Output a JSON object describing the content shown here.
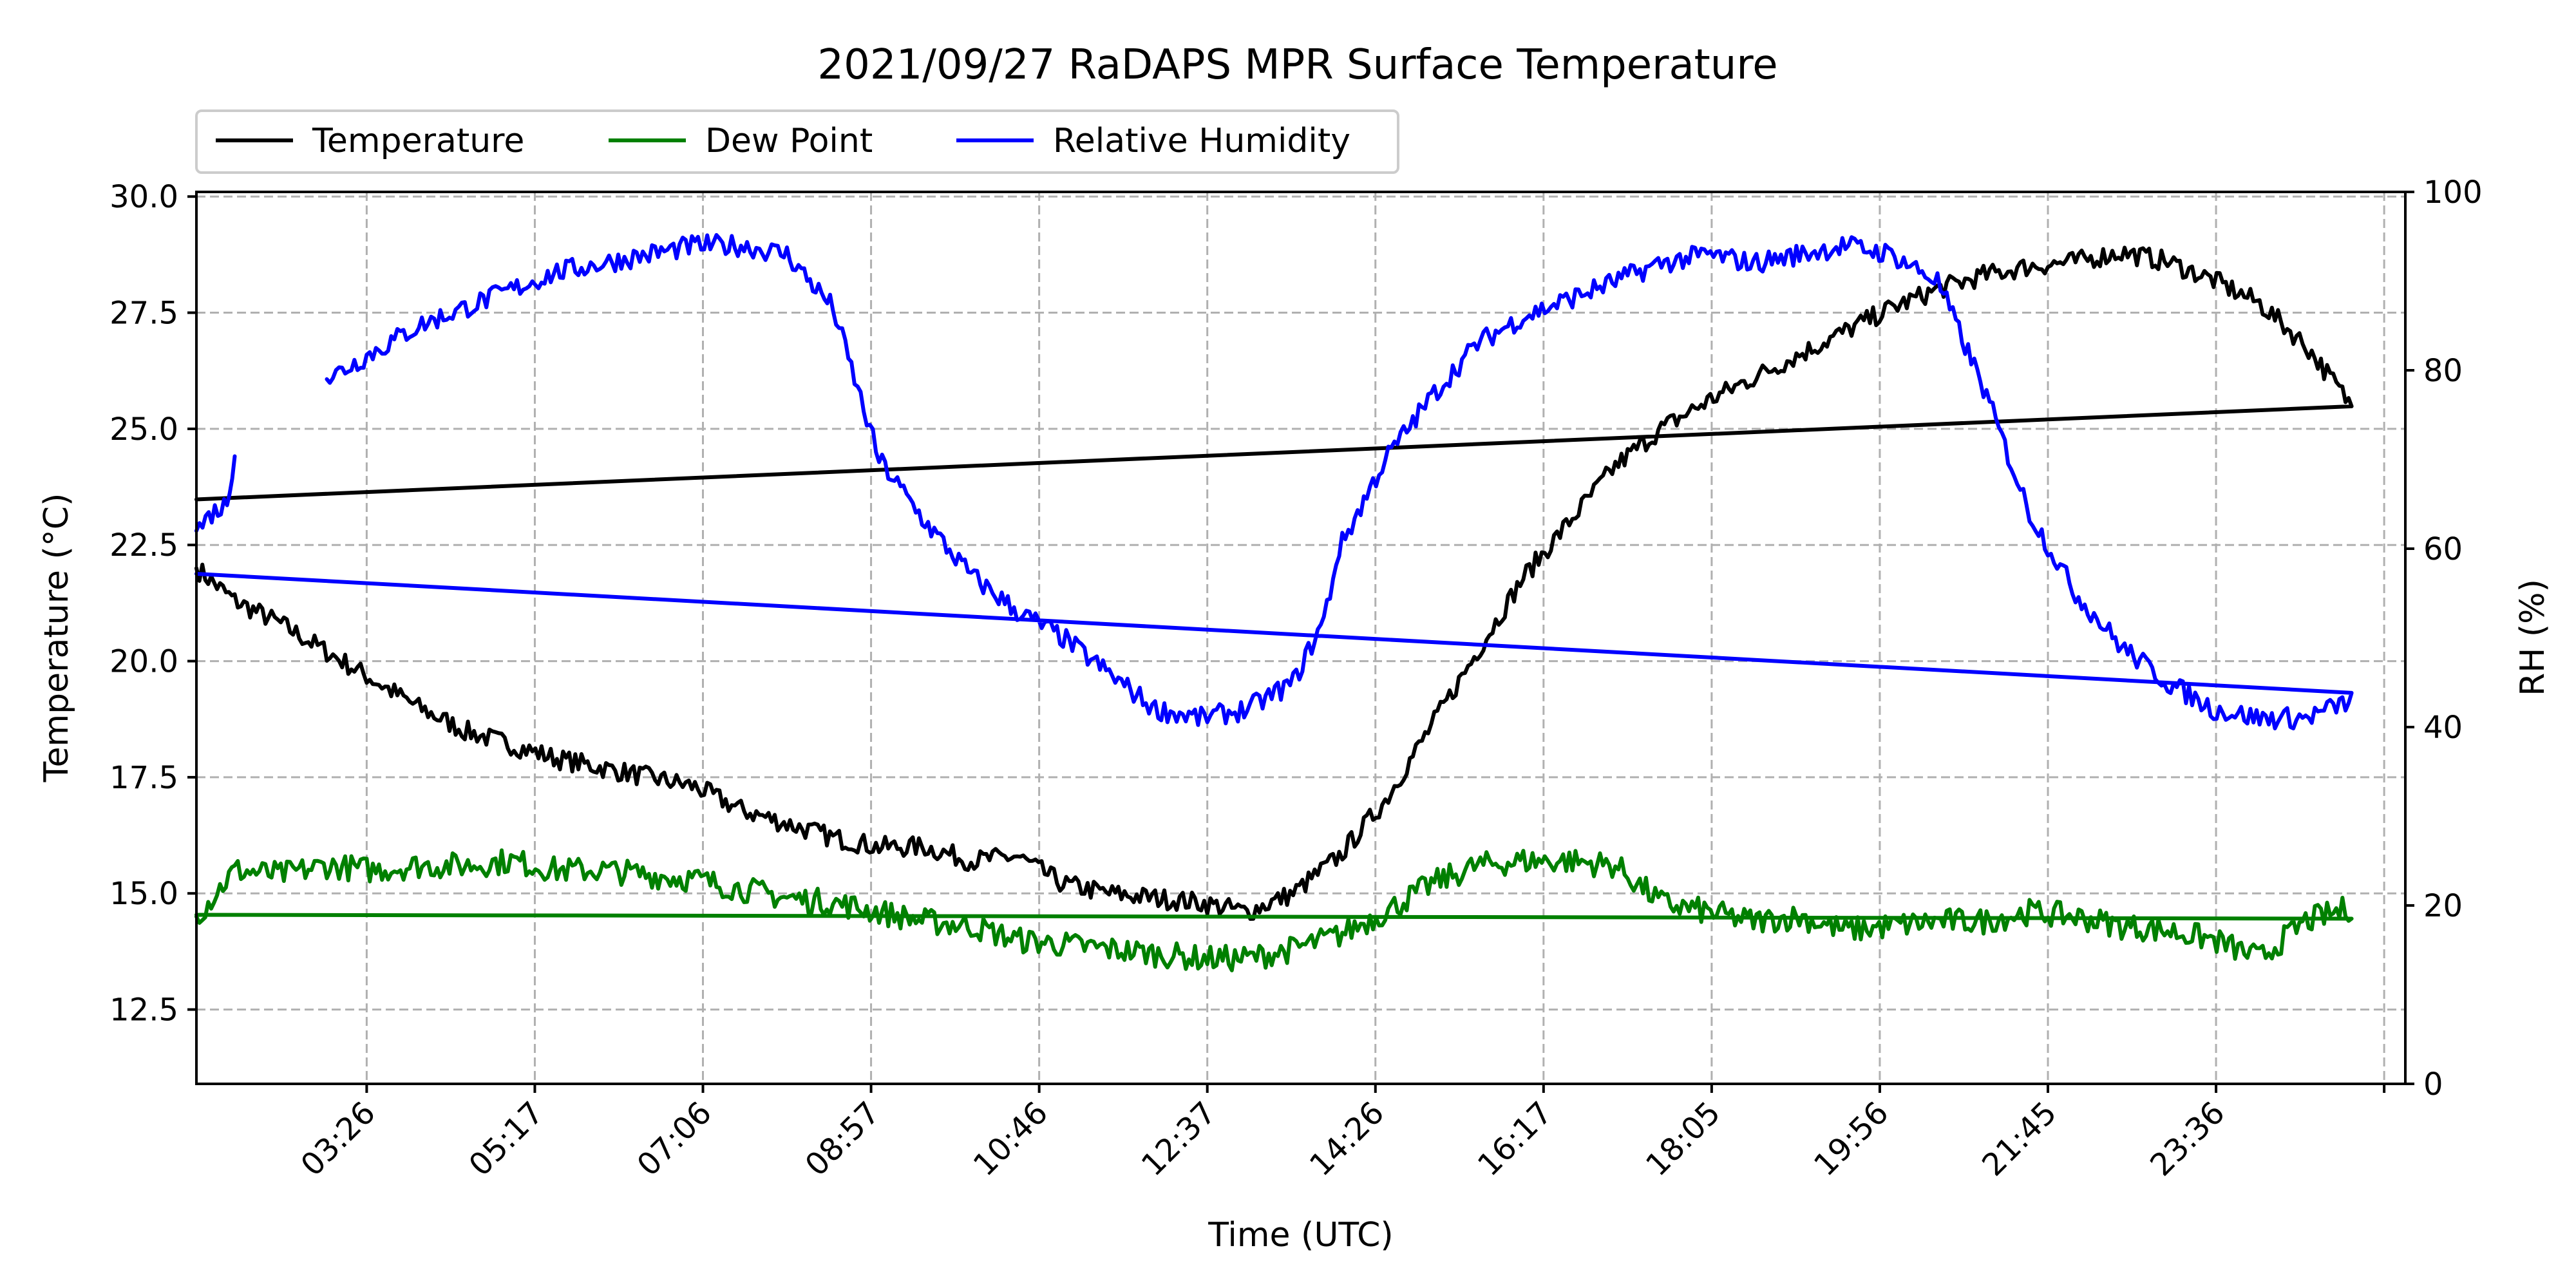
{
  "chart_data": {
    "type": "line",
    "title": "2021/09/27 RaDAPS MPR Surface Temperature",
    "xlabel": "Time (UTC)",
    "ylabel": "Temperature ($^\\circ$C)",
    "ylabel_display": "Temperature (°C)",
    "y2label": "RH (%)",
    "ylim": [
      10.9,
      30.1
    ],
    "y2lim": [
      0,
      100
    ],
    "y_ticks": [
      12.5,
      15.0,
      17.5,
      20.0,
      22.5,
      25.0,
      27.5,
      30.0
    ],
    "y_tick_labels": [
      "12.5",
      "15.0",
      "17.5",
      "20.0",
      "22.5",
      "25.0",
      "27.5",
      "30.0"
    ],
    "y2_ticks": [
      0,
      20,
      40,
      60,
      80,
      100
    ],
    "y2_tick_labels": [
      "0",
      "20",
      "40",
      "60",
      "80",
      "100"
    ],
    "xlim": [
      "01:35",
      "01:35 +1d"
    ],
    "x_tick_labels": [
      "03:26",
      "05:17",
      "07:06",
      "08:57",
      "10:46",
      "12:37",
      "14:26",
      "16:17",
      "18:05",
      "19:56",
      "21:45",
      "23:36",
      ""
    ],
    "grid": true,
    "legend_position": "top-left",
    "series": [
      {
        "name": "Temperature",
        "axis": "left",
        "color": "#000000",
        "x": [
          "01:35",
          "02:00",
          "02:30",
          "03:00",
          "03:30",
          "04:00",
          "04:30",
          "05:00",
          "05:30",
          "06:00",
          "06:30",
          "07:00",
          "07:30",
          "08:00",
          "08:30",
          "09:00",
          "09:30",
          "10:00",
          "10:30",
          "11:00",
          "11:30",
          "12:00",
          "12:30",
          "13:00",
          "13:30",
          "14:00",
          "14:30",
          "15:00",
          "15:30",
          "16:00",
          "16:30",
          "17:00",
          "17:30",
          "18:00",
          "18:30",
          "19:00",
          "19:30",
          "20:00",
          "20:30",
          "21:00",
          "21:30",
          "22:00",
          "22:30",
          "23:00",
          "23:30",
          "00:00",
          "00:30",
          "01:00",
          "01:35"
        ],
        "values": [
          22.0,
          21.3,
          20.8,
          20.2,
          19.6,
          19.0,
          18.5,
          18.2,
          17.9,
          17.7,
          17.5,
          17.3,
          16.8,
          16.5,
          16.2,
          16.0,
          16.0,
          15.7,
          15.8,
          15.2,
          15.0,
          14.9,
          14.8,
          14.6,
          15.0,
          15.8,
          17.0,
          18.6,
          20.2,
          21.8,
          23.0,
          24.2,
          25.0,
          25.6,
          26.1,
          26.6,
          27.1,
          27.6,
          28.0,
          28.3,
          28.5,
          28.6,
          28.8,
          28.6,
          28.2,
          27.7,
          26.8,
          25.5,
          23.7
        ]
      },
      {
        "name": "Dew Point",
        "axis": "left",
        "color": "#008000",
        "x": [
          "01:35",
          "02:00",
          "02:30",
          "03:00",
          "03:30",
          "04:00",
          "04:30",
          "05:00",
          "05:30",
          "06:00",
          "06:30",
          "07:00",
          "07:30",
          "08:00",
          "08:30",
          "09:00",
          "09:30",
          "10:00",
          "10:30",
          "11:00",
          "11:30",
          "12:00",
          "12:30",
          "13:00",
          "13:30",
          "14:00",
          "14:30",
          "15:00",
          "15:30",
          "16:00",
          "16:30",
          "17:00",
          "17:30",
          "18:00",
          "18:30",
          "19:00",
          "19:30",
          "20:00",
          "20:30",
          "21:00",
          "21:30",
          "22:00",
          "22:30",
          "23:00",
          "23:30",
          "00:00",
          "00:30",
          "01:00",
          "01:35"
        ],
        "values": [
          14.5,
          15.5,
          15.4,
          15.6,
          15.5,
          15.6,
          15.6,
          15.7,
          15.5,
          15.5,
          15.4,
          15.3,
          15.1,
          14.9,
          14.8,
          14.6,
          14.4,
          14.3,
          14.0,
          13.9,
          13.8,
          13.7,
          13.6,
          13.6,
          13.8,
          14.1,
          14.6,
          15.2,
          15.6,
          15.7,
          15.7,
          15.6,
          14.8,
          14.6,
          14.4,
          14.5,
          14.2,
          14.3,
          14.4,
          14.4,
          14.6,
          14.5,
          14.3,
          14.2,
          14.0,
          13.6,
          14.4,
          14.7,
          14.6
        ]
      },
      {
        "name": "Relative Humidity",
        "axis": "right",
        "color": "#0000ff",
        "x": [
          "01:35",
          "01:45",
          "01:55",
          "02:00",
          "02:40",
          "03:00",
          "03:30",
          "04:00",
          "04:30",
          "05:00",
          "05:30",
          "06:00",
          "06:30",
          "07:00",
          "07:30",
          "08:00",
          "08:15",
          "08:30",
          "09:00",
          "09:30",
          "10:00",
          "10:30",
          "11:00",
          "11:30",
          "12:00",
          "12:30",
          "13:00",
          "13:30",
          "13:50",
          "14:00",
          "14:30",
          "15:00",
          "15:30",
          "16:00",
          "16:30",
          "17:00",
          "17:30",
          "18:00",
          "18:30",
          "19:00",
          "19:30",
          "20:00",
          "20:30",
          "21:00",
          "21:30",
          "22:00",
          "22:30",
          "23:00",
          "23:30",
          "00:00",
          "00:30",
          "01:00",
          "01:35"
        ],
        "values": [
          62,
          64,
          65,
          71,
          null,
          79,
          82,
          85,
          87,
          89,
          91,
          92,
          93,
          94,
          94,
          93,
          90,
          87,
          70,
          63,
          57,
          53,
          50,
          46,
          42,
          41,
          42,
          45,
          52,
          60,
          70,
          77,
          83,
          86,
          88,
          90,
          92,
          93,
          92,
          93,
          94,
          93,
          90,
          78,
          64,
          55,
          49,
          45,
          42,
          41,
          41,
          43,
          57
        ]
      }
    ]
  }
}
